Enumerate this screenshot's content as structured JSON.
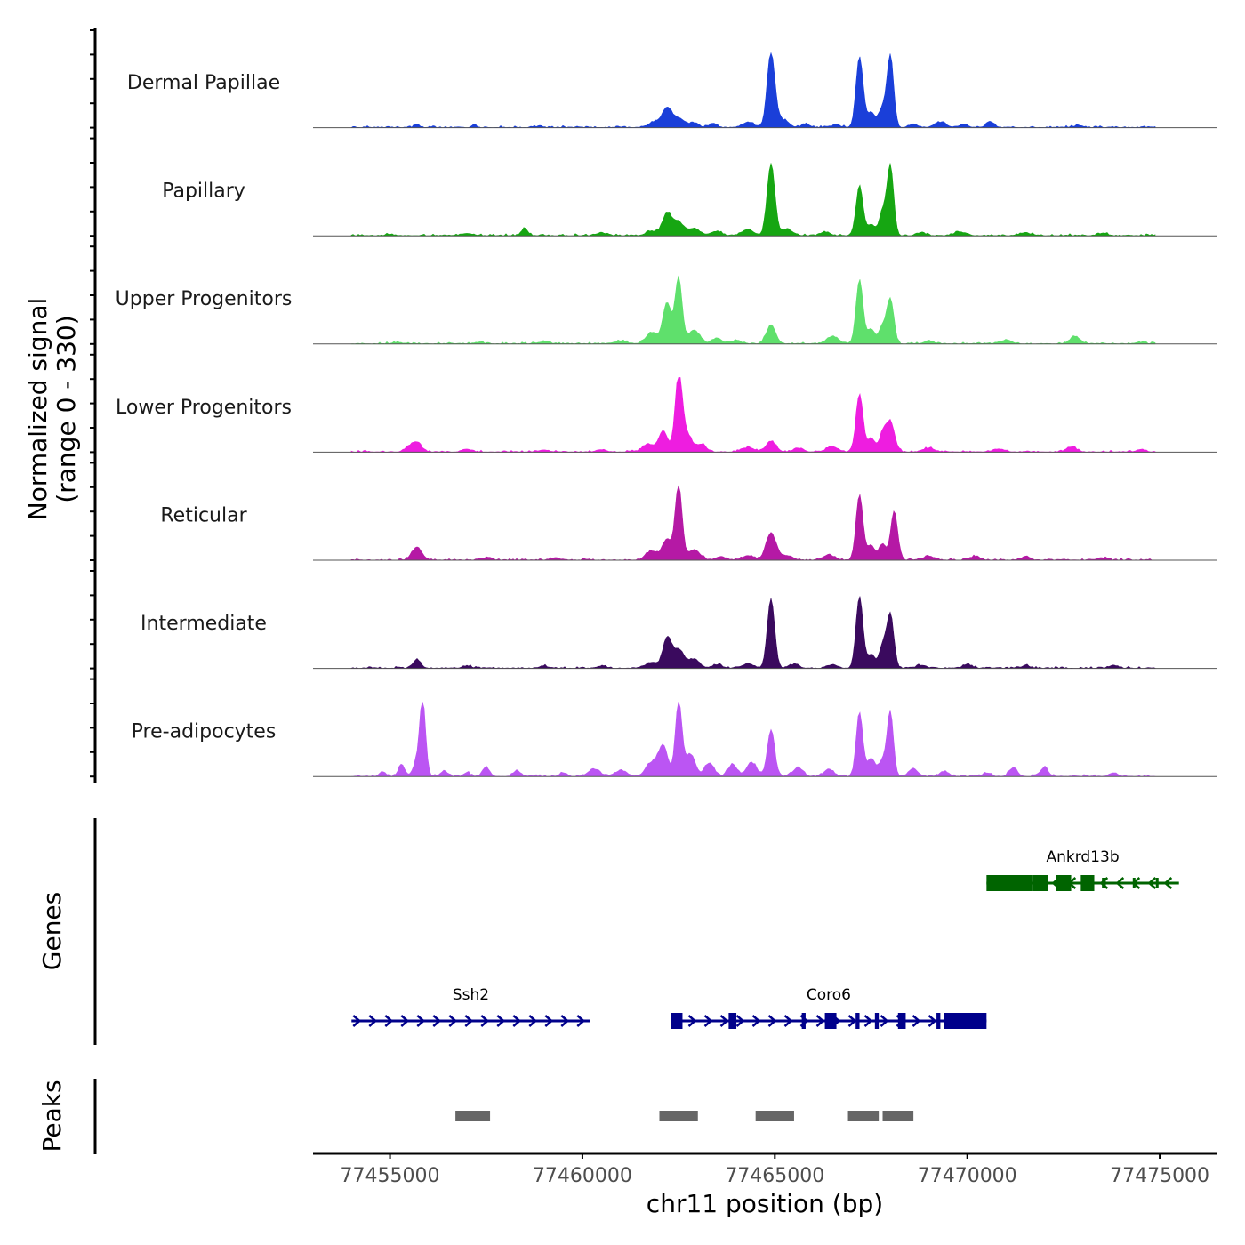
{
  "chart_data": {
    "type": "area",
    "subtype": "genome-coverage-track",
    "ylabel_line1": "Normalized signal",
    "ylabel_line2": "(range 0 - 330)",
    "yrange": [
      0,
      330
    ],
    "xlabel": "chr11 position (bp)",
    "xlim": [
      77453000,
      77476500
    ],
    "xticks": [
      77455000,
      77460000,
      77465000,
      77470000,
      77475000
    ],
    "xtick_labels": [
      "77455000",
      "77460000",
      "77465000",
      "77470000",
      "77475000"
    ],
    "baseline_start": 77454000,
    "background_noise_fraction": 0.03,
    "tracks": [
      {
        "name": "Dermal Papillae",
        "color": "#1a3fd9",
        "peaks": [
          [
            77455700,
            0.05,
            60
          ],
          [
            77457200,
            0.03,
            50
          ],
          [
            77458900,
            0.03,
            60
          ],
          [
            77461900,
            0.08,
            150
          ],
          [
            77462200,
            0.25,
            120
          ],
          [
            77462500,
            0.12,
            150
          ],
          [
            77462900,
            0.06,
            120
          ],
          [
            77463400,
            0.05,
            100
          ],
          [
            77464300,
            0.07,
            150
          ],
          [
            77464900,
            1.0,
            100
          ],
          [
            77465200,
            0.1,
            150
          ],
          [
            77465800,
            0.05,
            100
          ],
          [
            77466600,
            0.04,
            100
          ],
          [
            77467200,
            0.95,
            90
          ],
          [
            77467500,
            0.2,
            110
          ],
          [
            77467800,
            0.25,
            90
          ],
          [
            77468000,
            0.96,
            85
          ],
          [
            77468600,
            0.05,
            100
          ],
          [
            77469300,
            0.07,
            150
          ],
          [
            77469900,
            0.04,
            120
          ],
          [
            77470600,
            0.08,
            100
          ],
          [
            77472900,
            0.03,
            100
          ],
          [
            77475000,
            0.02,
            100
          ]
        ]
      },
      {
        "name": "Papillary",
        "color": "#16a612",
        "peaks": [
          [
            77455000,
            0.02,
            100
          ],
          [
            77457000,
            0.03,
            150
          ],
          [
            77458500,
            0.1,
            80
          ],
          [
            77460500,
            0.04,
            120
          ],
          [
            77461800,
            0.06,
            150
          ],
          [
            77462200,
            0.3,
            120
          ],
          [
            77462500,
            0.18,
            130
          ],
          [
            77462900,
            0.1,
            150
          ],
          [
            77463500,
            0.06,
            120
          ],
          [
            77464300,
            0.08,
            150
          ],
          [
            77464900,
            0.96,
            100
          ],
          [
            77465300,
            0.08,
            150
          ],
          [
            77466300,
            0.05,
            120
          ],
          [
            77467200,
            0.66,
            90
          ],
          [
            77467500,
            0.15,
            100
          ],
          [
            77467800,
            0.32,
            90
          ],
          [
            77468000,
            0.93,
            85
          ],
          [
            77468800,
            0.04,
            120
          ],
          [
            77469800,
            0.05,
            150
          ],
          [
            77471500,
            0.04,
            150
          ],
          [
            77473500,
            0.03,
            120
          ],
          [
            77475000,
            0.02,
            120
          ]
        ]
      },
      {
        "name": "Upper Progenitors",
        "color": "#5fe06c",
        "peaks": [
          [
            77455200,
            0.02,
            120
          ],
          [
            77457300,
            0.02,
            120
          ],
          [
            77459000,
            0.03,
            150
          ],
          [
            77461000,
            0.04,
            150
          ],
          [
            77461800,
            0.15,
            150
          ],
          [
            77462200,
            0.55,
            110
          ],
          [
            77462500,
            0.88,
            90
          ],
          [
            77462900,
            0.18,
            150
          ],
          [
            77463500,
            0.08,
            120
          ],
          [
            77464000,
            0.05,
            120
          ],
          [
            77464900,
            0.25,
            120
          ],
          [
            77466500,
            0.1,
            150
          ],
          [
            77467200,
            0.86,
            90
          ],
          [
            77467500,
            0.2,
            100
          ],
          [
            77467800,
            0.22,
            90
          ],
          [
            77468000,
            0.6,
            90
          ],
          [
            77469000,
            0.04,
            120
          ],
          [
            77471000,
            0.05,
            150
          ],
          [
            77472800,
            0.1,
            130
          ],
          [
            77474500,
            0.02,
            120
          ]
        ]
      },
      {
        "name": "Lower Progenitors",
        "color": "#ee1de0",
        "peaks": [
          [
            77455700,
            0.12,
            120
          ],
          [
            77455500,
            0.06,
            120
          ],
          [
            77457000,
            0.04,
            120
          ],
          [
            77459000,
            0.03,
            120
          ],
          [
            77460500,
            0.03,
            120
          ],
          [
            77461700,
            0.1,
            150
          ],
          [
            77462100,
            0.28,
            120
          ],
          [
            77462500,
            1.0,
            90
          ],
          [
            77462700,
            0.25,
            140
          ],
          [
            77463100,
            0.1,
            120
          ],
          [
            77464300,
            0.06,
            150
          ],
          [
            77464900,
            0.14,
            130
          ],
          [
            77465600,
            0.05,
            120
          ],
          [
            77466500,
            0.07,
            150
          ],
          [
            77467200,
            0.78,
            90
          ],
          [
            77467500,
            0.18,
            100
          ],
          [
            77467800,
            0.22,
            90
          ],
          [
            77468000,
            0.4,
            110
          ],
          [
            77469000,
            0.05,
            150
          ],
          [
            77470800,
            0.04,
            150
          ],
          [
            77472700,
            0.07,
            130
          ],
          [
            77474500,
            0.03,
            120
          ]
        ]
      },
      {
        "name": "Reticular",
        "color": "#b519a5",
        "peaks": [
          [
            77455700,
            0.17,
            130
          ],
          [
            77457500,
            0.03,
            120
          ],
          [
            77459300,
            0.03,
            120
          ],
          [
            77461800,
            0.12,
            150
          ],
          [
            77462200,
            0.28,
            120
          ],
          [
            77462500,
            1.0,
            90
          ],
          [
            77462900,
            0.14,
            150
          ],
          [
            77463600,
            0.05,
            120
          ],
          [
            77464300,
            0.06,
            150
          ],
          [
            77464900,
            0.36,
            130
          ],
          [
            77465300,
            0.06,
            150
          ],
          [
            77466400,
            0.07,
            150
          ],
          [
            77467200,
            0.86,
            90
          ],
          [
            77467500,
            0.2,
            100
          ],
          [
            77467800,
            0.22,
            90
          ],
          [
            77468100,
            0.66,
            90
          ],
          [
            77469000,
            0.05,
            150
          ],
          [
            77470200,
            0.05,
            120
          ],
          [
            77471500,
            0.04,
            120
          ],
          [
            77473500,
            0.03,
            120
          ]
        ]
      },
      {
        "name": "Intermediate",
        "color": "#3a0a5e",
        "peaks": [
          [
            77455700,
            0.12,
            100
          ],
          [
            77457000,
            0.03,
            120
          ],
          [
            77459000,
            0.03,
            120
          ],
          [
            77460500,
            0.03,
            120
          ],
          [
            77461800,
            0.08,
            150
          ],
          [
            77462200,
            0.4,
            110
          ],
          [
            77462500,
            0.25,
            140
          ],
          [
            77462900,
            0.12,
            140
          ],
          [
            77463500,
            0.05,
            120
          ],
          [
            77464300,
            0.06,
            150
          ],
          [
            77464900,
            0.93,
            95
          ],
          [
            77465500,
            0.05,
            130
          ],
          [
            77466500,
            0.05,
            130
          ],
          [
            77467200,
            0.96,
            90
          ],
          [
            77467500,
            0.18,
            100
          ],
          [
            77467800,
            0.3,
            90
          ],
          [
            77468000,
            0.72,
            90
          ],
          [
            77468800,
            0.04,
            120
          ],
          [
            77470000,
            0.05,
            120
          ],
          [
            77471500,
            0.03,
            120
          ],
          [
            77473800,
            0.04,
            120
          ]
        ]
      },
      {
        "name": "Pre-adipocytes",
        "color": "#bb55f3",
        "peaks": [
          [
            77454800,
            0.06,
            80
          ],
          [
            77455300,
            0.16,
            80
          ],
          [
            77455700,
            0.19,
            100
          ],
          [
            77455850,
            1.0,
            75
          ],
          [
            77456400,
            0.07,
            90
          ],
          [
            77457000,
            0.05,
            80
          ],
          [
            77457500,
            0.12,
            90
          ],
          [
            77458300,
            0.08,
            90
          ],
          [
            77459500,
            0.05,
            90
          ],
          [
            77460300,
            0.1,
            150
          ],
          [
            77461000,
            0.08,
            150
          ],
          [
            77461800,
            0.18,
            150
          ],
          [
            77462100,
            0.4,
            120
          ],
          [
            77462500,
            1.0,
            85
          ],
          [
            77462800,
            0.3,
            130
          ],
          [
            77463300,
            0.18,
            120
          ],
          [
            77463900,
            0.16,
            120
          ],
          [
            77464400,
            0.18,
            130
          ],
          [
            77464900,
            0.62,
            95
          ],
          [
            77465600,
            0.12,
            120
          ],
          [
            77466400,
            0.1,
            120
          ],
          [
            77467200,
            0.86,
            85
          ],
          [
            77467500,
            0.24,
            100
          ],
          [
            77467800,
            0.22,
            100
          ],
          [
            77468000,
            0.86,
            80
          ],
          [
            77468600,
            0.1,
            120
          ],
          [
            77469400,
            0.06,
            120
          ],
          [
            77470500,
            0.05,
            100
          ],
          [
            77471200,
            0.12,
            100
          ],
          [
            77472000,
            0.12,
            100
          ],
          [
            77473800,
            0.05,
            100
          ]
        ]
      }
    ],
    "genes_label": "Genes",
    "genes": [
      {
        "name": "Ankrd13b",
        "strand": "-",
        "row": 1,
        "start": 77470500,
        "end": 77475500,
        "color": "#006400",
        "exons": [
          [
            77470500,
            77471700,
            "thick"
          ],
          [
            77471700,
            77472100,
            "thick"
          ],
          [
            77472300,
            77472700,
            "thick"
          ],
          [
            77472950,
            77473300,
            "thick"
          ],
          [
            77473500,
            77473600,
            "thin"
          ],
          [
            77474300,
            77474350,
            "thin"
          ],
          [
            77474900,
            77474950,
            "thin"
          ]
        ]
      },
      {
        "name": "Ssh2",
        "strand": "+",
        "row": 2,
        "start": 77454000,
        "end": 77460200,
        "color": "#00008b",
        "exons": []
      },
      {
        "name": "Coro6",
        "strand": "+",
        "row": 2,
        "start": 77462300,
        "end": 77470500,
        "color": "#00008b",
        "exons": [
          [
            77462300,
            77462500,
            "thick"
          ],
          [
            77462500,
            77462600,
            "thick"
          ],
          [
            77463800,
            77464000,
            "thick"
          ],
          [
            77465700,
            77465800,
            "thick"
          ],
          [
            77466300,
            77466600,
            "thick"
          ],
          [
            77467100,
            77467200,
            "thick"
          ],
          [
            77467600,
            77467700,
            "thick"
          ],
          [
            77468200,
            77468400,
            "thick"
          ],
          [
            77469200,
            77469300,
            "thick"
          ],
          [
            77469400,
            77470500,
            "thick"
          ]
        ]
      }
    ],
    "peaks_label": "Peaks",
    "peak_regions": [
      [
        77456700,
        77457600
      ],
      [
        77462000,
        77463000
      ],
      [
        77464500,
        77465500
      ],
      [
        77466900,
        77467700
      ],
      [
        77467800,
        77468600
      ]
    ]
  }
}
